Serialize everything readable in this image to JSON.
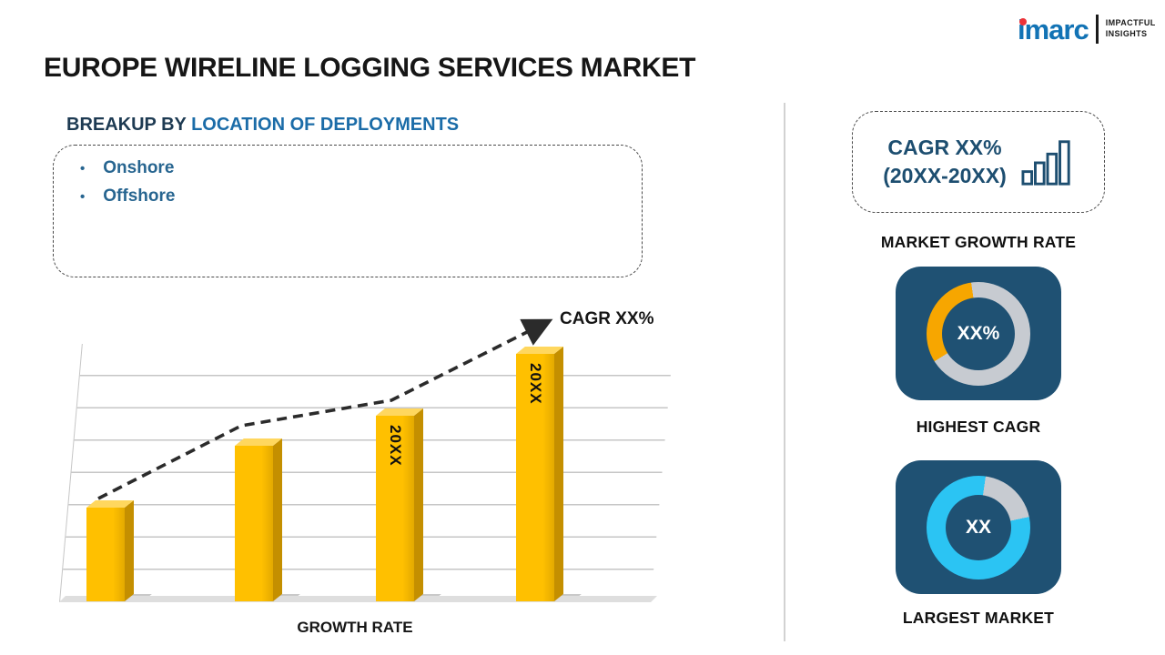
{
  "logo": {
    "brand": "imarc",
    "tagline": [
      "IMPACTFUL",
      "INSIGHTS"
    ]
  },
  "title": "EUROPE WIRELINE LOGGING SERVICES MARKET",
  "breakup": {
    "heading_prefix": "BREAKUP BY",
    "heading_highlight": "LOCATION OF DEPLOYMENTS",
    "items": [
      "Onshore",
      "Offshore"
    ]
  },
  "chart_data": {
    "type": "bar",
    "title": "",
    "xlabel": "GROWTH RATE",
    "ylabel": "",
    "categories": [
      "",
      "",
      "20XX",
      "20XX"
    ],
    "values": [
      38,
      63,
      75,
      100
    ],
    "bar_labels": [
      "",
      "",
      "20XX",
      "20XX"
    ],
    "trend_label": "CAGR XX%",
    "gridlines": true,
    "legend": false
  },
  "sidebar": {
    "growth_box": {
      "line1": "CAGR XX%",
      "line2": "(20XX-20XX)"
    },
    "growth_caption": "MARKET GROWTH RATE",
    "highest_cagr": {
      "value": "XX%",
      "caption": "HIGHEST CAGR"
    },
    "largest_market": {
      "value": "XX",
      "caption": "LARGEST MARKET"
    }
  },
  "colors": {
    "bar_gold": "#FFC000",
    "bar_gold_dark": "#C48F00",
    "bar_gold_light": "#FFD75E",
    "card_navy": "#1F5173",
    "donut_gray": "#C7CBD1",
    "donut_yellow": "#F7A600",
    "donut_cyan": "#2BC4F3",
    "heading_blue": "#1B6CA8",
    "list_blue": "#276590",
    "text_navy": "#1D4E70",
    "brand_blue": "#1273B5",
    "brand_red": "#ED3237"
  }
}
